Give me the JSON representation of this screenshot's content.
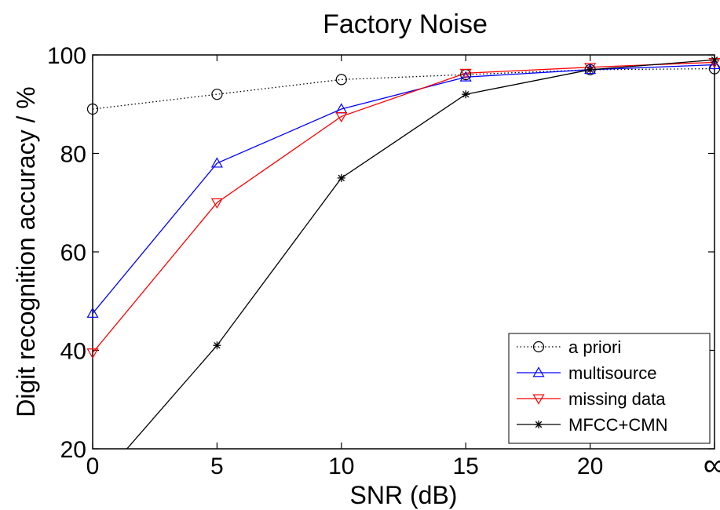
{
  "chart_data": {
    "type": "line",
    "title": "Factory Noise",
    "xlabel": "SNR (dB)",
    "ylabel": "Digit recognition accuracy / %",
    "categories": [
      "0",
      "5",
      "10",
      "15",
      "20",
      "∞"
    ],
    "y_ticks": [
      "20",
      "40",
      "60",
      "80",
      "100"
    ],
    "ylim": [
      20,
      100
    ],
    "grid": false,
    "legend_position": "bottom-right",
    "series": [
      {
        "name": "a priori",
        "color": "#000000",
        "line_style": "dotted",
        "marker": "circle",
        "values": [
          89,
          92,
          95,
          96,
          97,
          97.2
        ]
      },
      {
        "name": "multisource",
        "color": "#0000ff",
        "line_style": "solid",
        "marker": "triangle-up",
        "values": [
          47.5,
          78,
          89,
          95.5,
          97,
          98
        ]
      },
      {
        "name": "missing data",
        "color": "#ff0000",
        "line_style": "solid",
        "marker": "triangle-down",
        "values": [
          39.5,
          70,
          87.5,
          96.3,
          97.5,
          98.5
        ]
      },
      {
        "name": "MFCC+CMN",
        "color": "#000000",
        "line_style": "solid",
        "marker": "asterisk",
        "values": [
          12,
          41,
          75,
          92,
          97,
          99
        ]
      }
    ]
  }
}
